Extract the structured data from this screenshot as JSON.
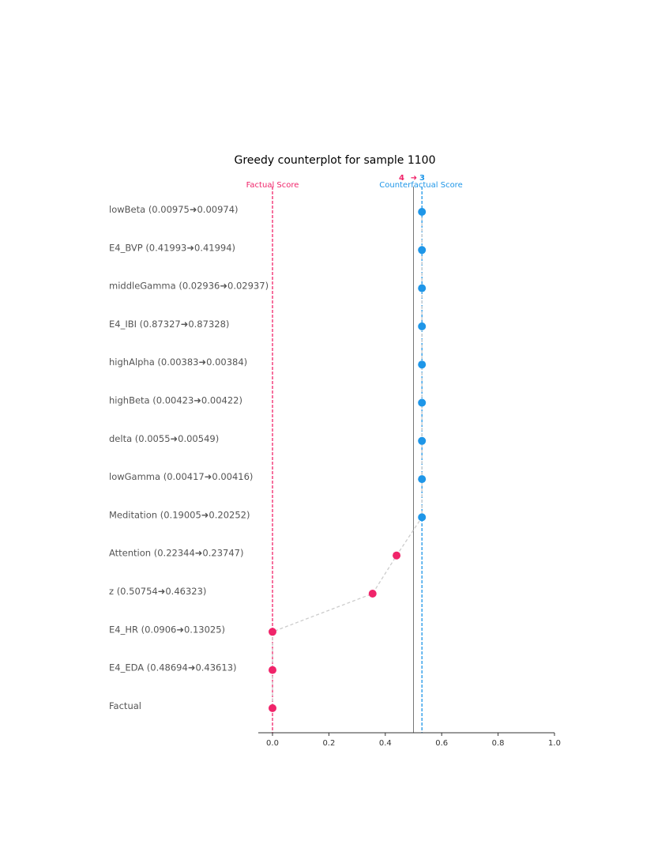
{
  "chart_data": {
    "type": "scatter",
    "title": "Greedy counterplot for sample 1100",
    "xlim": [
      -0.05,
      1.0
    ],
    "xticks": [
      0.0,
      0.2,
      0.4,
      0.6,
      0.8,
      1.0
    ],
    "xtick_labels": [
      "0.0",
      "0.2",
      "0.4",
      "0.6",
      "0.8",
      "1.0"
    ],
    "threshold": 0.5,
    "factual_score": {
      "label": "Factual Score",
      "value": 0.0
    },
    "counterfactual_score": {
      "label": "Counterfactual Score",
      "value": 0.53
    },
    "class_change": {
      "from": "4",
      "arrow": "➜",
      "to": "3"
    },
    "rows": [
      {
        "label": "lowBeta (0.00975➜0.00974)",
        "score": 0.53
      },
      {
        "label": "E4_BVP (0.41993➜0.41994)",
        "score": 0.53
      },
      {
        "label": "middleGamma (0.02936➜0.02937)",
        "score": 0.53
      },
      {
        "label": "E4_IBI (0.87327➜0.87328)",
        "score": 0.53
      },
      {
        "label": "highAlpha (0.00383➜0.00384)",
        "score": 0.53
      },
      {
        "label": "highBeta (0.00423➜0.00422)",
        "score": 0.53
      },
      {
        "label": "delta (0.0055➜0.00549)",
        "score": 0.53
      },
      {
        "label": "lowGamma (0.00417➜0.00416)",
        "score": 0.53
      },
      {
        "label": "Meditation (0.19005➜0.20252)",
        "score": 0.53
      },
      {
        "label": "Attention (0.22344➜0.23747)",
        "score": 0.44
      },
      {
        "label": "z (0.50754➜0.46323)",
        "score": 0.355
      },
      {
        "label": "E4_HR (0.0906➜0.13025)",
        "score": 0.0
      },
      {
        "label": "E4_EDA (0.48694➜0.43613)",
        "score": 0.0
      },
      {
        "label": "Factual",
        "score": 0.0
      }
    ],
    "colors": {
      "factual": "#f0246a",
      "counterfactual": "#1e96e8",
      "threshold": "#777777",
      "path": "#cccccc",
      "axis": "#333333"
    },
    "grid": false,
    "legend": "none"
  }
}
